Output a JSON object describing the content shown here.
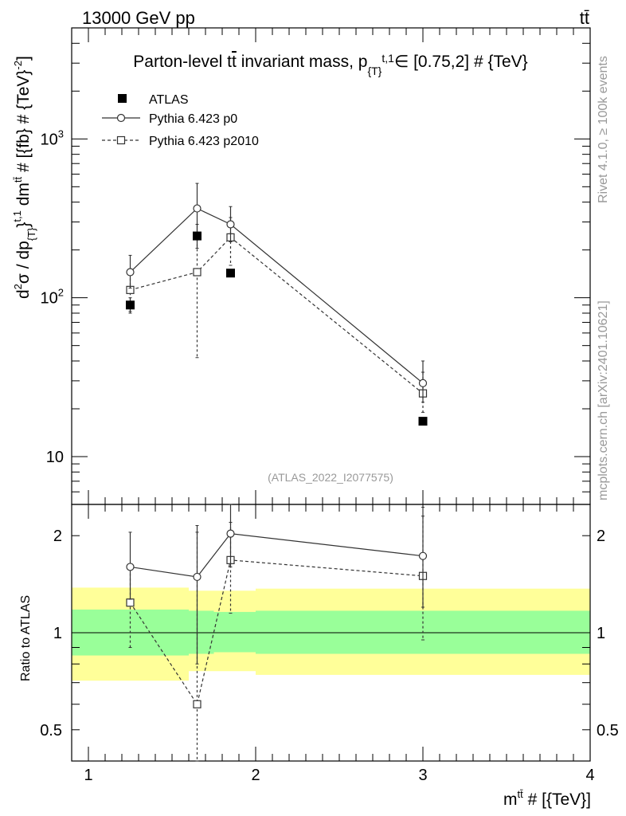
{
  "header": {
    "left": "13000 GeV pp",
    "right": "tt̄"
  },
  "side_labels": {
    "rivet": "Rivet 4.1.0, ≥ 100k events",
    "mcplots": "mcplots.cern.ch [arXiv:2401.10621]"
  },
  "watermark": "(ATLAS_2022_I2077575)",
  "chart_data": [
    {
      "type": "scatter",
      "panel": "main",
      "title": "Parton-level t̄t invariant mass, p_{T}^{t,1} ∈ [0.75,2] # {TeV}",
      "title_parts": {
        "pre": "Parton-level t",
        "tbar": "t",
        "mid": " invariant mass, p",
        "sub": "{T}",
        "sup": "t,1",
        "post": "∈ [0.75,2] # {TeV}"
      },
      "ylabel": "d²σ / dp_{T}^{t,1} dm^{tt̄} # [{fb} # {TeV}^-2]",
      "ylabel_parts": {
        "a": "d",
        "a_sup": "2",
        "b": "σ / dp",
        "b_sub": "{T}",
        "c": "}",
        "c_sup": "t,1",
        "d": " dm",
        "d_sup": "tt̄",
        "e": " # [{fb} # {TeV}",
        "e_sup": "-2",
        "f": "]"
      },
      "yscale": "log",
      "ylim": [
        5,
        5000
      ],
      "xlim": [
        0.9,
        4.0
      ],
      "y_ticks": [
        {
          "value": 10,
          "label": "10"
        },
        {
          "value": 100,
          "label": "10²"
        },
        {
          "value": 1000,
          "label": "10³"
        }
      ],
      "legend_position": "top-left",
      "series": [
        {
          "name": "ATLAS",
          "style": "filled-square",
          "x": [
            1.25,
            1.65,
            1.85,
            3.0
          ],
          "y": [
            90,
            245,
            143,
            16.7
          ],
          "yerr_lo": [
            80,
            205,
            143,
            16.0
          ],
          "yerr_hi": [
            100,
            290,
            143,
            17.4
          ]
        },
        {
          "name": "Pythia 6.423 p0",
          "style": "open-circle-solid",
          "x": [
            1.25,
            1.65,
            1.85,
            3.0
          ],
          "y": [
            145,
            365,
            290,
            29
          ],
          "yerr_lo": [
            115,
            255,
            225,
            22
          ],
          "yerr_hi": [
            185,
            525,
            375,
            40
          ]
        },
        {
          "name": "Pythia 6.423 p2010",
          "style": "open-square-dashed",
          "x": [
            1.25,
            1.65,
            1.85,
            3.0
          ],
          "y": [
            112,
            145,
            240,
            25
          ],
          "yerr_lo": [
            82,
            42,
            160,
            19
          ],
          "yerr_hi": [
            142,
            250,
            320,
            34
          ]
        }
      ]
    },
    {
      "type": "scatter",
      "panel": "ratio",
      "ylabel": "Ratio to ATLAS",
      "xlabel": "m^{tt̄} # [{TeV}]",
      "xlabel_parts": {
        "pre": "m",
        "sup": "tt̄",
        "post": " # [{TeV}]"
      },
      "yscale": "log",
      "ylim": [
        0.4,
        2.5
      ],
      "xlim": [
        0.9,
        4.0
      ],
      "y_ticks": [
        {
          "value": 0.5,
          "label": "0.5"
        },
        {
          "value": 1,
          "label": "1"
        },
        {
          "value": 2,
          "label": "2"
        }
      ],
      "x_ticks": [
        {
          "value": 1,
          "label": "1"
        },
        {
          "value": 2,
          "label": "2"
        },
        {
          "value": 3,
          "label": "3"
        },
        {
          "value": 4,
          "label": "4"
        }
      ],
      "bands": [
        {
          "x0": 0.9,
          "x1": 1.6,
          "yellow": [
            0.71,
            1.38
          ],
          "green": [
            0.85,
            1.18
          ]
        },
        {
          "x0": 1.6,
          "x1": 1.75,
          "yellow": [
            0.76,
            1.35
          ],
          "green": [
            0.86,
            1.17
          ]
        },
        {
          "x0": 1.75,
          "x1": 2.0,
          "yellow": [
            0.76,
            1.35
          ],
          "green": [
            0.87,
            1.16
          ]
        },
        {
          "x0": 2.0,
          "x1": 4.0,
          "yellow": [
            0.74,
            1.37
          ],
          "green": [
            0.86,
            1.17
          ]
        }
      ],
      "series": [
        {
          "name": "Pythia 6.423 p0",
          "style": "open-circle-solid",
          "x": [
            1.25,
            1.65,
            1.85,
            3.0
          ],
          "y": [
            1.6,
            1.49,
            2.03,
            1.73
          ],
          "yerr_lo": [
            1.27,
            0.8,
            1.6,
            1.2
          ],
          "yerr_hi": [
            2.05,
            2.15,
            2.55,
            2.45
          ]
        },
        {
          "name": "Pythia 6.423 p2010",
          "style": "open-square-dashed",
          "x": [
            1.25,
            1.65,
            1.85,
            3.0
          ],
          "y": [
            1.24,
            0.6,
            1.68,
            1.5
          ],
          "yerr_lo": [
            0.9,
            0.3,
            1.15,
            0.95
          ],
          "yerr_hi": [
            1.58,
            2.05,
            2.2,
            2.3
          ]
        }
      ]
    }
  ]
}
